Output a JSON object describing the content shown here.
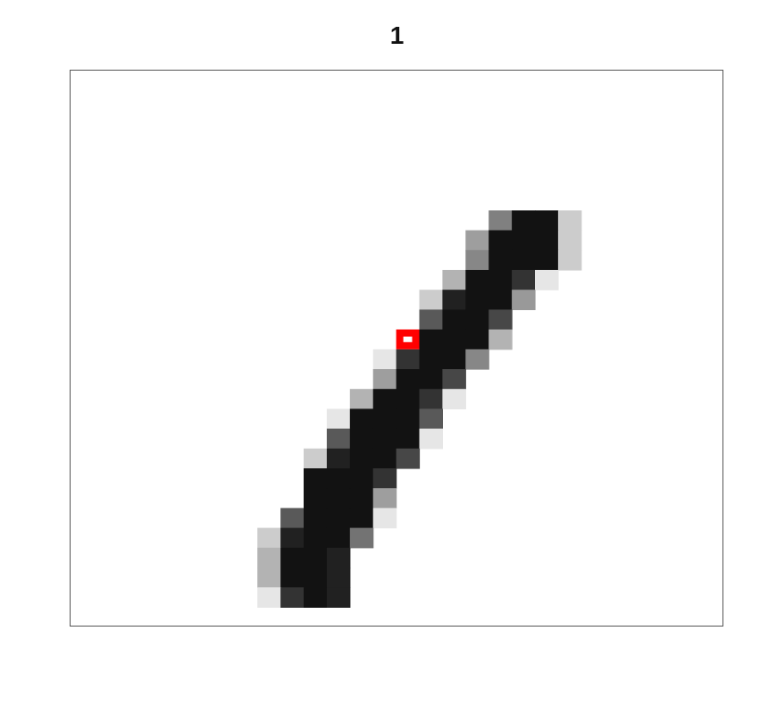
{
  "figure": {
    "title": "1"
  },
  "image": {
    "grid_size": 28,
    "colors": {
      "ink": "#111111",
      "highlight": "#ff0000",
      "frame": "#555555"
    },
    "highlight_cell": {
      "row": 13,
      "col": 14
    },
    "stroke_cells": [
      [
        7,
        18,
        0.5
      ],
      [
        7,
        19,
        0.93
      ],
      [
        7,
        20,
        0.93
      ],
      [
        7,
        21,
        0.2
      ],
      [
        8,
        17,
        0.38
      ],
      [
        8,
        18,
        0.93
      ],
      [
        8,
        19,
        0.93
      ],
      [
        8,
        20,
        0.93
      ],
      [
        8,
        21,
        0.2
      ],
      [
        9,
        17,
        0.47
      ],
      [
        9,
        18,
        0.93
      ],
      [
        9,
        19,
        0.93
      ],
      [
        9,
        20,
        0.93
      ],
      [
        9,
        21,
        0.2
      ],
      [
        10,
        16,
        0.3
      ],
      [
        10,
        17,
        0.93
      ],
      [
        10,
        18,
        0.93
      ],
      [
        10,
        19,
        0.8
      ],
      [
        10,
        20,
        0.1
      ],
      [
        11,
        15,
        0.2
      ],
      [
        11,
        16,
        0.87
      ],
      [
        11,
        17,
        0.93
      ],
      [
        11,
        18,
        0.93
      ],
      [
        11,
        19,
        0.4
      ],
      [
        12,
        15,
        0.65
      ],
      [
        12,
        16,
        0.93
      ],
      [
        12,
        17,
        0.93
      ],
      [
        12,
        18,
        0.72
      ],
      [
        13,
        15,
        0.93
      ],
      [
        13,
        16,
        0.93
      ],
      [
        13,
        17,
        0.93
      ],
      [
        13,
        18,
        0.3
      ],
      [
        14,
        13,
        0.1
      ],
      [
        14,
        14,
        0.8
      ],
      [
        14,
        15,
        0.93
      ],
      [
        14,
        16,
        0.93
      ],
      [
        14,
        17,
        0.47
      ],
      [
        15,
        13,
        0.38
      ],
      [
        15,
        14,
        0.93
      ],
      [
        15,
        15,
        0.93
      ],
      [
        15,
        16,
        0.72
      ],
      [
        16,
        12,
        0.3
      ],
      [
        16,
        13,
        0.93
      ],
      [
        16,
        14,
        0.93
      ],
      [
        16,
        15,
        0.8
      ],
      [
        16,
        16,
        0.1
      ],
      [
        17,
        11,
        0.1
      ],
      [
        17,
        12,
        0.93
      ],
      [
        17,
        13,
        0.93
      ],
      [
        17,
        14,
        0.93
      ],
      [
        17,
        15,
        0.65
      ],
      [
        18,
        11,
        0.65
      ],
      [
        18,
        12,
        0.93
      ],
      [
        18,
        13,
        0.93
      ],
      [
        18,
        14,
        0.93
      ],
      [
        18,
        15,
        0.1
      ],
      [
        19,
        10,
        0.2
      ],
      [
        19,
        11,
        0.87
      ],
      [
        19,
        12,
        0.93
      ],
      [
        19,
        13,
        0.93
      ],
      [
        19,
        14,
        0.72
      ],
      [
        20,
        10,
        0.93
      ],
      [
        20,
        11,
        0.93
      ],
      [
        20,
        12,
        0.93
      ],
      [
        20,
        13,
        0.8
      ],
      [
        21,
        10,
        0.93
      ],
      [
        21,
        11,
        0.93
      ],
      [
        21,
        12,
        0.93
      ],
      [
        21,
        13,
        0.38
      ],
      [
        22,
        9,
        0.65
      ],
      [
        22,
        10,
        0.93
      ],
      [
        22,
        11,
        0.93
      ],
      [
        22,
        12,
        0.93
      ],
      [
        22,
        13,
        0.1
      ],
      [
        23,
        8,
        0.2
      ],
      [
        23,
        9,
        0.87
      ],
      [
        23,
        10,
        0.93
      ],
      [
        23,
        11,
        0.93
      ],
      [
        23,
        12,
        0.55
      ],
      [
        24,
        8,
        0.3
      ],
      [
        24,
        9,
        0.93
      ],
      [
        24,
        10,
        0.93
      ],
      [
        24,
        11,
        0.87
      ],
      [
        25,
        8,
        0.3
      ],
      [
        25,
        9,
        0.93
      ],
      [
        25,
        10,
        0.93
      ],
      [
        25,
        11,
        0.87
      ],
      [
        26,
        8,
        0.1
      ],
      [
        26,
        9,
        0.8
      ],
      [
        26,
        10,
        0.93
      ],
      [
        26,
        11,
        0.87
      ]
    ]
  }
}
